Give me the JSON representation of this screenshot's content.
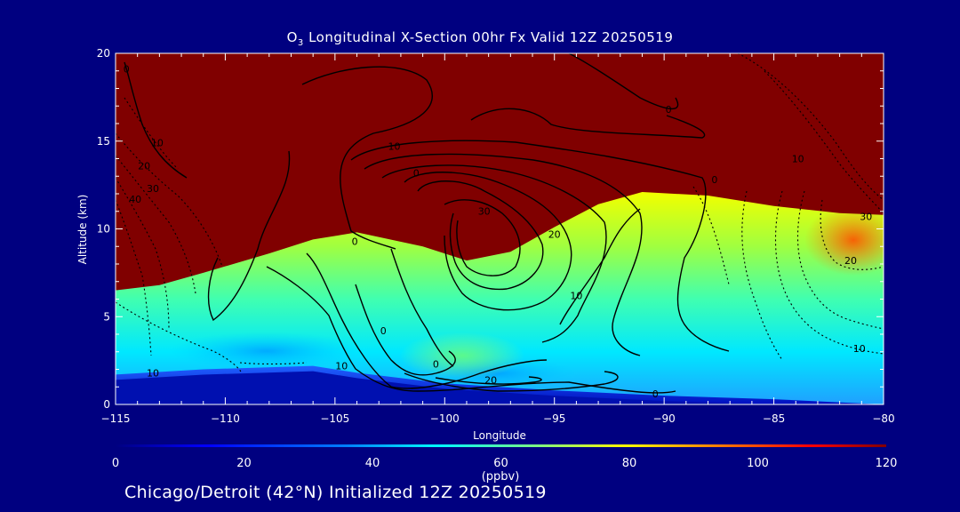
{
  "title": {
    "prefix": "O",
    "subscript": "3",
    "text": " Longitudinal X-Section 00hr  Fx Valid 12Z 20250519"
  },
  "caption": "Chicago/Detroit (42°N) Initialized 12Z 20250519",
  "colors": {
    "background": "#000080",
    "stratosphere": "#800000",
    "contour_line": "#000000"
  },
  "chart_data": {
    "type": "heatmap",
    "xlabel": "Longitude",
    "ylabel": "Altitude (km)",
    "xlim": [
      -115,
      -80
    ],
    "ylim": [
      0,
      20
    ],
    "x_ticks": [
      -115,
      -110,
      -105,
      -100,
      -95,
      -90,
      -85,
      -80
    ],
    "x_tick_labels": [
      "−115",
      "−110",
      "−105",
      "−100",
      "−95",
      "−90",
      "−85",
      "−80"
    ],
    "y_ticks": [
      0,
      5,
      10,
      15,
      20
    ],
    "y_tick_labels": [
      "0",
      "5",
      "10",
      "15",
      "20"
    ],
    "colorbar": {
      "min": 0,
      "max": 120,
      "unit": "(ppbv)",
      "ticks": [
        0,
        20,
        40,
        60,
        80,
        100,
        120
      ],
      "tick_labels": [
        "0",
        "20",
        "40",
        "60",
        "80",
        "100",
        "120"
      ],
      "colormap": "rainbow (blue-cyan-green-yellow-red-darkred)"
    },
    "tropopause_height_km": [
      {
        "lon": -115,
        "km": 6.5
      },
      {
        "lon": -113,
        "km": 6.8
      },
      {
        "lon": -111,
        "km": 7.5
      },
      {
        "lon": -108,
        "km": 8.6
      },
      {
        "lon": -106,
        "km": 9.4
      },
      {
        "lon": -104,
        "km": 9.8
      },
      {
        "lon": -101,
        "km": 9.0
      },
      {
        "lon": -99,
        "km": 8.2
      },
      {
        "lon": -97,
        "km": 8.7
      },
      {
        "lon": -95,
        "km": 10.1
      },
      {
        "lon": -93,
        "km": 11.4
      },
      {
        "lon": -91,
        "km": 12.1
      },
      {
        "lon": -88,
        "km": 11.9
      },
      {
        "lon": -85,
        "km": 11.3
      },
      {
        "lon": -82,
        "km": 10.9
      },
      {
        "lon": -80,
        "km": 10.8
      }
    ],
    "surface_height_km": [
      {
        "lon": -115,
        "km": 1.7
      },
      {
        "lon": -111,
        "km": 2.0
      },
      {
        "lon": -106,
        "km": 2.2
      },
      {
        "lon": -104,
        "km": 1.8
      },
      {
        "lon": -100,
        "km": 1.2
      },
      {
        "lon": -95,
        "km": 0.8
      },
      {
        "lon": -90,
        "km": 0.5
      },
      {
        "lon": -85,
        "km": 0.3
      },
      {
        "lon": -80,
        "km": 0.0
      }
    ],
    "contour_labels": [
      {
        "text": "0",
        "lon": -104.1,
        "km": 9.1
      },
      {
        "text": "10",
        "lon": -102.3,
        "km": 14.5
      },
      {
        "text": "0",
        "lon": -101.3,
        "km": 13.0
      },
      {
        "text": "30",
        "lon": -98.2,
        "km": 10.8
      },
      {
        "text": "20",
        "lon": -95.0,
        "km": 9.5
      },
      {
        "text": "10",
        "lon": -94.0,
        "km": 6.0
      },
      {
        "text": "0",
        "lon": -89.8,
        "km": 16.6
      },
      {
        "text": "0",
        "lon": -87.7,
        "km": 12.6
      },
      {
        "text": "10",
        "lon": -83.9,
        "km": 13.8
      },
      {
        "text": "30",
        "lon": -80.8,
        "km": 10.5
      },
      {
        "text": "20",
        "lon": -81.5,
        "km": 8.0
      },
      {
        "text": "10",
        "lon": -81.1,
        "km": 3.0
      },
      {
        "text": "0",
        "lon": -102.8,
        "km": 4.0
      },
      {
        "text": "0",
        "lon": -100.4,
        "km": 2.1
      },
      {
        "text": "20",
        "lon": -97.9,
        "km": 1.2
      },
      {
        "text": "0",
        "lon": -90.4,
        "km": 0.4
      },
      {
        "text": "10",
        "lon": -104.7,
        "km": 2.0
      },
      {
        "text": "10",
        "lon": -113.3,
        "km": 1.6
      },
      {
        "text": "10",
        "lon": -113.1,
        "km": 14.7
      },
      {
        "text": "20",
        "lon": -113.7,
        "km": 13.4
      },
      {
        "text": "30",
        "lon": -113.3,
        "km": 12.1
      },
      {
        "text": "40",
        "lon": -114.1,
        "km": 11.5
      },
      {
        "text": "0",
        "lon": -114.5,
        "km": 18.9
      }
    ]
  }
}
